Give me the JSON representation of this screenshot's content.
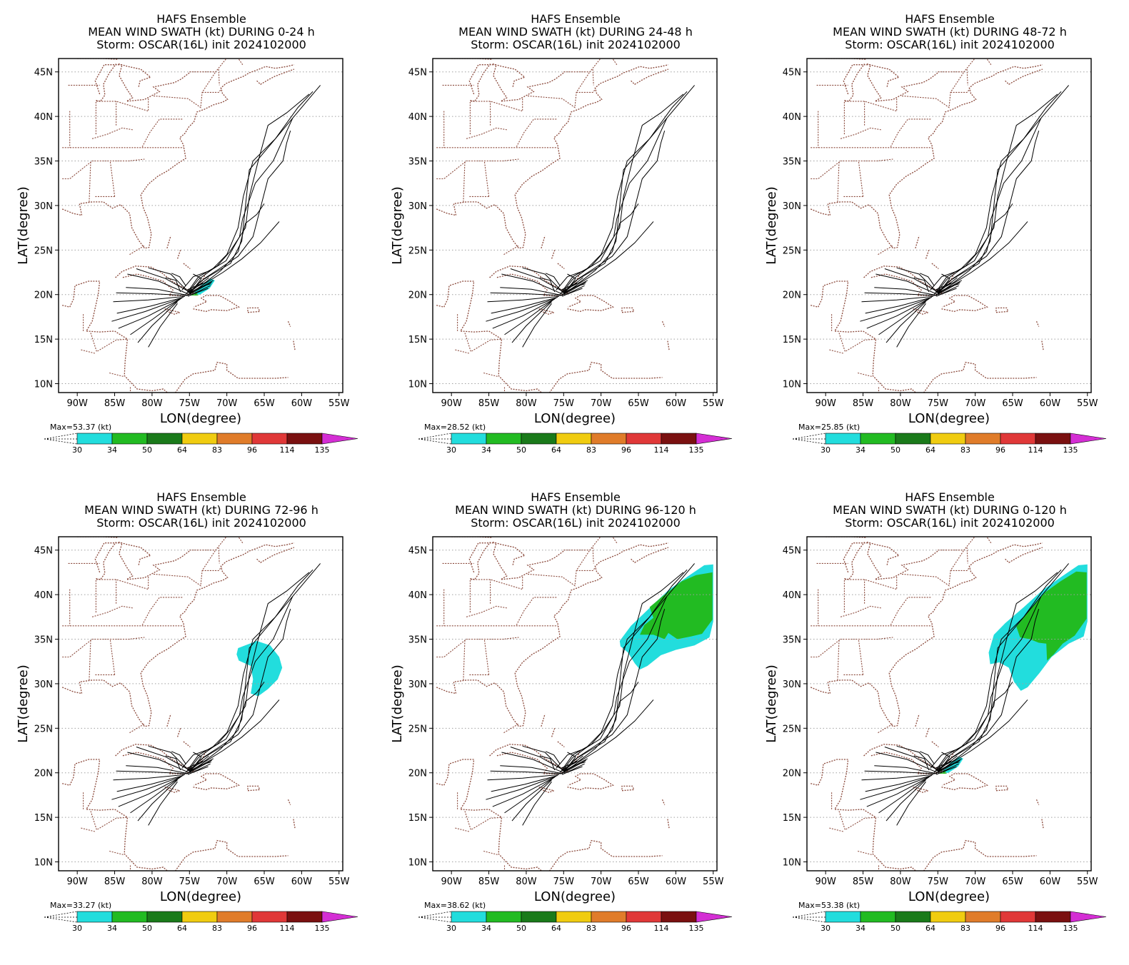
{
  "common": {
    "title1": "HAFS Ensemble",
    "title3": "Storm: OSCAR(16L) init 2024102000",
    "xlabel": "LON(degree)",
    "ylabel": "LAT(degree)",
    "lat_ticks": [
      "45N",
      "40N",
      "35N",
      "30N",
      "25N",
      "20N",
      "15N",
      "10N"
    ],
    "lon_ticks": [
      "90W",
      "85W",
      "80W",
      "75W",
      "70W",
      "65W",
      "60W",
      "55W"
    ],
    "colorbar": {
      "unit": "(kt)",
      "levels": [
        "30",
        "34",
        "50",
        "64",
        "83",
        "96",
        "114",
        "135"
      ],
      "colors": [
        "#22dddd",
        "#22bb22",
        "#1a7a1a",
        "#f0cc10",
        "#e07c2a",
        "#e03838",
        "#7a1010",
        "#d42ed4"
      ]
    },
    "colors": {
      "coast": "#8b4a3c",
      "track": "#000000",
      "grid": "#a0a0a0"
    }
  },
  "panels": [
    {
      "title2": "MEAN WIND SWATH (kt) DURING  0-24 h",
      "max_label": "Max=53.37"
    },
    {
      "title2": "MEAN WIND SWATH (kt) DURING 24-48 h",
      "max_label": "Max=28.52"
    },
    {
      "title2": "MEAN WIND SWATH (kt) DURING 48-72 h",
      "max_label": "Max=25.85"
    },
    {
      "title2": "MEAN WIND SWATH (kt) DURING 72-96 h",
      "max_label": "Max=33.27"
    },
    {
      "title2": "MEAN WIND SWATH (kt) DURING 96-120 h",
      "max_label": "Max=38.62"
    },
    {
      "title2": "MEAN WIND SWATH (kt) DURING 0-120 h",
      "max_label": "Max=53.38"
    }
  ]
}
